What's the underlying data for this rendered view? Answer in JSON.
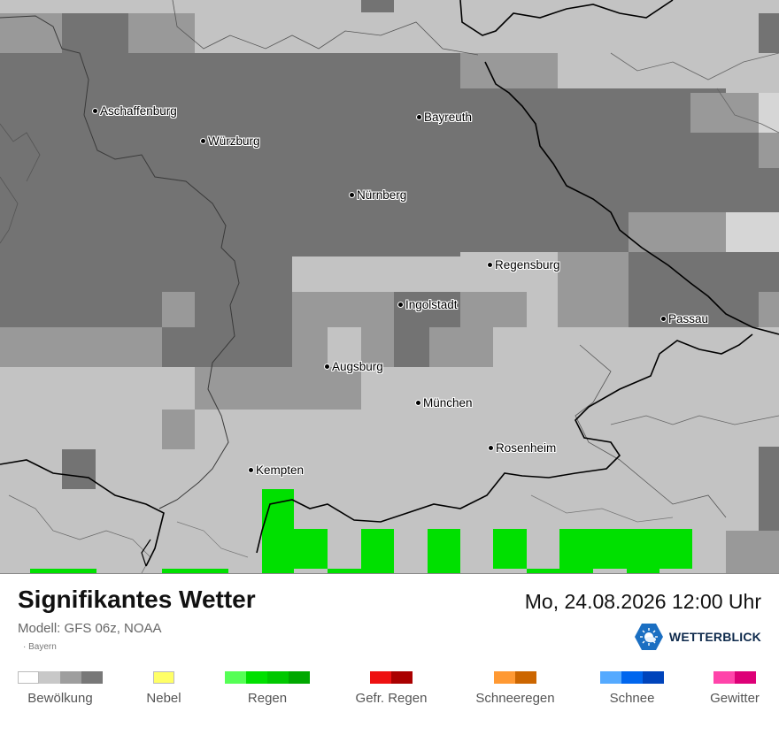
{
  "map": {
    "cities": [
      {
        "id": "aschaffenburg",
        "name": "Aschaffenburg"
      },
      {
        "id": "wuerzburg",
        "name": "Würzburg"
      },
      {
        "id": "bayreuth",
        "name": "Bayreuth"
      },
      {
        "id": "nuernberg",
        "name": "Nürnberg"
      },
      {
        "id": "regensburg",
        "name": "Regensburg"
      },
      {
        "id": "ingolstadt",
        "name": "Ingolstadt"
      },
      {
        "id": "passau",
        "name": "Passau"
      },
      {
        "id": "augsburg",
        "name": "Augsburg"
      },
      {
        "id": "muenchen",
        "name": "München"
      },
      {
        "id": "rosenheim",
        "name": "Rosenheim"
      },
      {
        "id": "kempten",
        "name": "Kempten"
      }
    ],
    "colors": {
      "cloud_0": "#ffffff",
      "cloud_1": "#c3c3c3",
      "cloud_2": "#999999",
      "cloud_3": "#737373",
      "rain": "#00e000"
    }
  },
  "footer": {
    "title": "Signifikantes Wetter",
    "datetime": "Mo, 24.08.2026 12:00 Uhr",
    "model": "Modell: GFS 06z, NOAA",
    "region": "Bayern",
    "brand": "WETTERBLICK",
    "logo_icon": "sun-cloud-icon"
  },
  "legend": [
    {
      "label": "Bewölkung",
      "colors": [
        "#ffffff",
        "#c8c8c8",
        "#9e9e9e",
        "#787878"
      ]
    },
    {
      "label": "Nebel",
      "colors": [
        "#ffff66"
      ]
    },
    {
      "label": "Regen",
      "colors": [
        "#55ff55",
        "#00e000",
        "#00c800",
        "#00a800"
      ]
    },
    {
      "label": "Gefr. Regen",
      "colors": [
        "#ee1111",
        "#aa0000"
      ]
    },
    {
      "label": "Schneeregen",
      "colors": [
        "#ff9933",
        "#cc6600"
      ]
    },
    {
      "label": "Schnee",
      "colors": [
        "#55aaff",
        "#0066ee",
        "#0044bb"
      ]
    },
    {
      "label": "Gewitter",
      "colors": [
        "#ff44aa",
        "#dd0077"
      ]
    }
  ]
}
